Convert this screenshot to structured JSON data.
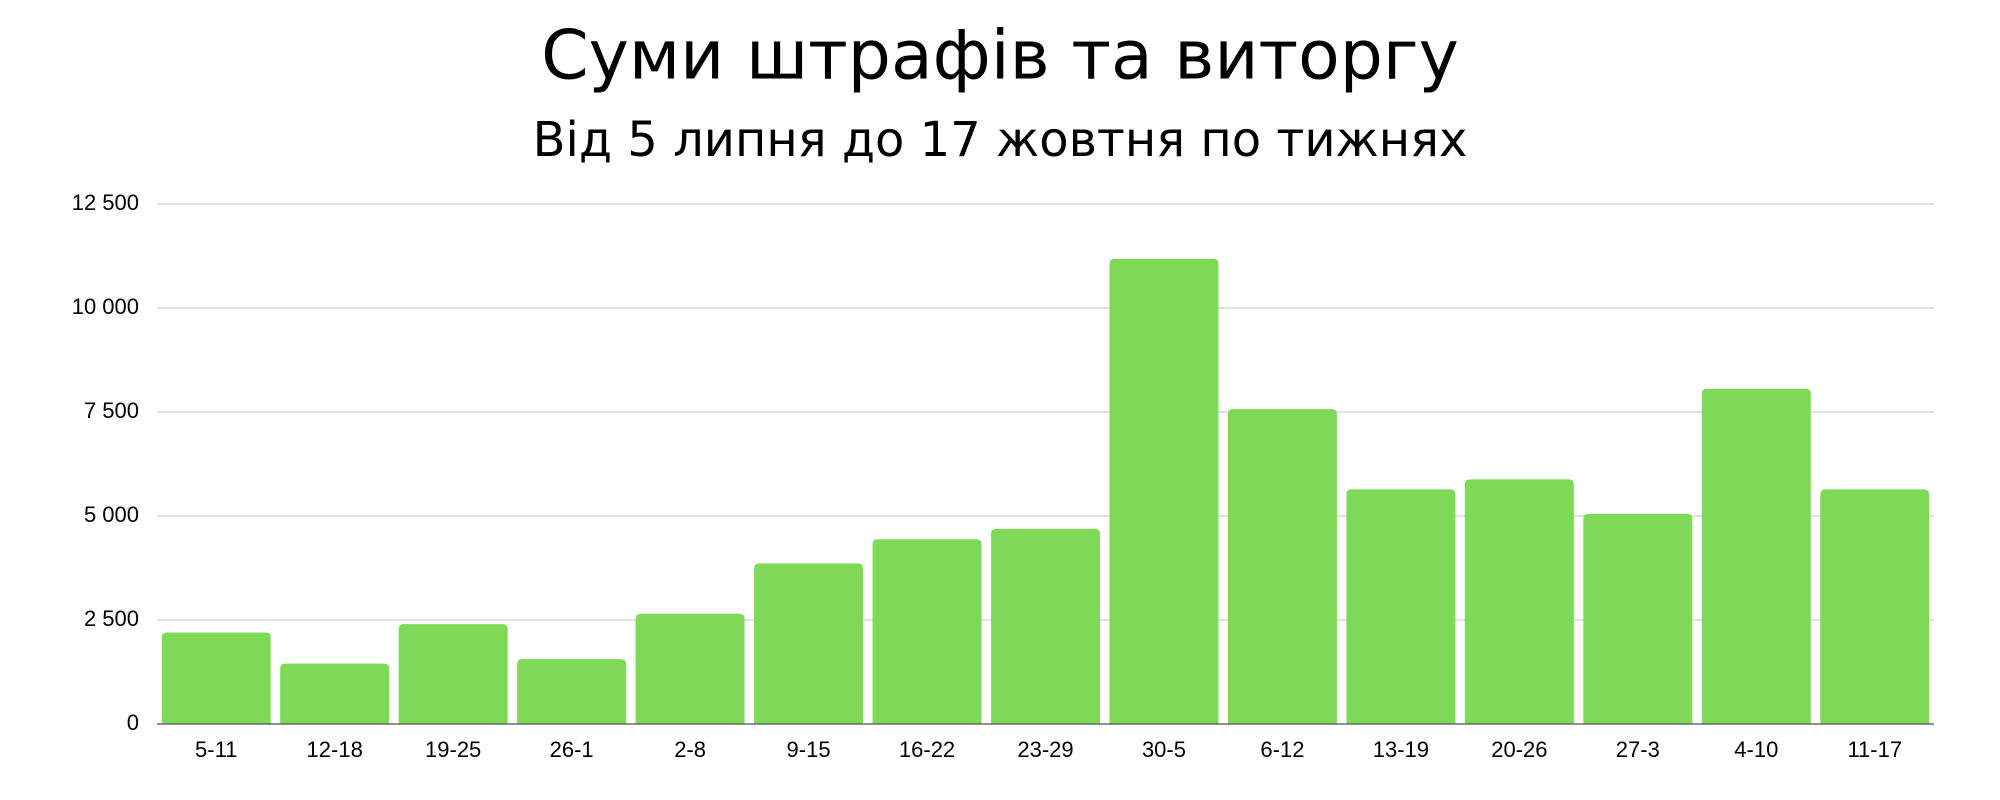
{
  "chart_data": {
    "type": "bar",
    "title": "Суми штрафів та виторгу",
    "subtitle": "Від 5 липня до 17 жовтня по тижнях",
    "categories": [
      "5-11",
      "12-18",
      "19-25",
      "26-1",
      "2-8",
      "9-15",
      "16-22",
      "23-29",
      "30-5",
      "6-12",
      "13-19",
      "20-26",
      "27-3",
      "4-10",
      "11-17"
    ],
    "values": [
      2200,
      1450,
      2400,
      1560,
      2650,
      3860,
      4440,
      4690,
      11180,
      7570,
      5640,
      5880,
      5050,
      8060,
      5640
    ],
    "color": "#7ed957",
    "ylim": [
      0,
      12500
    ],
    "yticks": [
      0,
      {
        "value": 2500,
        "label": "2 500"
      },
      {
        "value": 5000,
        "label": "5 000"
      },
      {
        "value": 7500,
        "label": "7 500"
      },
      {
        "value": 10000,
        "label": "10 000"
      },
      {
        "value": 12500,
        "label": "12 500"
      }
    ],
    "grid": true
  }
}
